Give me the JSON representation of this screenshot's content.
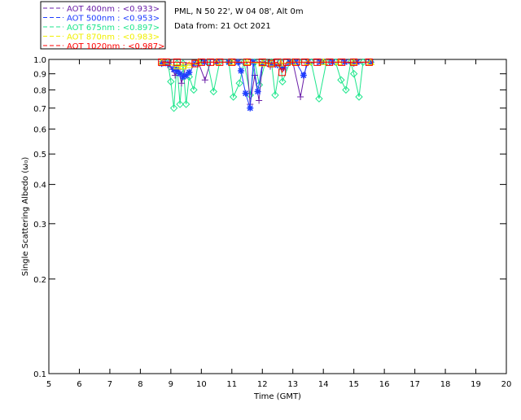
{
  "chart_data": {
    "type": "line",
    "header": {
      "station": "PML, N 50 22', W 04 08', Alt 0m",
      "date": "Data from: 21 Oct 2021"
    },
    "xlabel": "Time (GMT)",
    "ylabel": "Single Scattering Albedo (ω₀)",
    "xlim": [
      5,
      20
    ],
    "ylim": [
      0.1,
      1.0
    ],
    "yscale": "log",
    "xticks": [
      "5",
      "6",
      "7",
      "8",
      "9",
      "10",
      "11",
      "12",
      "13",
      "14",
      "15",
      "16",
      "17",
      "18",
      "19",
      "20"
    ],
    "yticks": [
      "0.1",
      "0.2",
      "0.3",
      "0.4",
      "0.5",
      "0.6",
      "0.7",
      "0.8",
      "0.9",
      "1.0"
    ],
    "legend_placement": "top-left",
    "series": [
      {
        "name": "AOT  400nm : <0.933>",
        "color": "#6a1ea8",
        "marker": "plus",
        "points": [
          [
            8.7,
            0.97
          ],
          [
            8.9,
            0.96
          ],
          [
            9.05,
            0.93
          ],
          [
            9.14,
            0.89
          ],
          [
            9.25,
            0.93
          ],
          [
            9.35,
            0.84
          ],
          [
            9.5,
            0.96
          ],
          [
            9.7,
            0.96
          ],
          [
            9.9,
            0.98
          ],
          [
            10.12,
            0.86
          ],
          [
            10.3,
            0.98
          ],
          [
            10.6,
            0.98
          ],
          [
            10.9,
            0.98
          ],
          [
            11.2,
            0.98
          ],
          [
            11.5,
            0.96
          ],
          [
            11.6,
            0.72
          ],
          [
            11.75,
            0.89
          ],
          [
            11.89,
            0.74
          ],
          [
            12.0,
            0.96
          ],
          [
            12.26,
            0.95
          ],
          [
            12.5,
            0.97
          ],
          [
            12.7,
            0.97
          ],
          [
            13.0,
            0.98
          ],
          [
            13.25,
            0.76
          ],
          [
            13.45,
            0.97
          ],
          [
            13.8,
            0.98
          ],
          [
            14.2,
            0.98
          ],
          [
            14.6,
            0.98
          ],
          [
            15.0,
            0.97
          ],
          [
            15.4,
            0.98
          ],
          [
            15.55,
            0.98
          ]
        ]
      },
      {
        "name": "AOT  500nm : <0.953>",
        "color": "#1e3cff",
        "marker": "asterisk",
        "points": [
          [
            8.7,
            0.97
          ],
          [
            8.9,
            0.97
          ],
          [
            9.1,
            0.93
          ],
          [
            9.2,
            0.92
          ],
          [
            9.3,
            0.9
          ],
          [
            9.4,
            0.88
          ],
          [
            9.5,
            0.89
          ],
          [
            9.6,
            0.91
          ],
          [
            9.8,
            0.97
          ],
          [
            10.1,
            0.98
          ],
          [
            10.5,
            0.98
          ],
          [
            10.9,
            0.98
          ],
          [
            11.2,
            0.98
          ],
          [
            11.3,
            0.92
          ],
          [
            11.45,
            0.78
          ],
          [
            11.6,
            0.7
          ],
          [
            11.7,
            0.98
          ],
          [
            11.85,
            0.79
          ],
          [
            12.0,
            0.97
          ],
          [
            12.3,
            0.97
          ],
          [
            12.5,
            0.96
          ],
          [
            12.7,
            0.94
          ],
          [
            12.9,
            0.98
          ],
          [
            13.1,
            0.98
          ],
          [
            13.35,
            0.89
          ],
          [
            13.5,
            0.98
          ],
          [
            13.9,
            0.98
          ],
          [
            14.3,
            0.98
          ],
          [
            14.7,
            0.98
          ],
          [
            15.1,
            0.98
          ],
          [
            15.55,
            0.98
          ]
        ]
      },
      {
        "name": "AOT  675nm : <0.897>",
        "color": "#1ee68c",
        "marker": "diamond",
        "points": [
          [
            8.75,
            0.98
          ],
          [
            8.9,
            0.98
          ],
          [
            9.0,
            0.85
          ],
          [
            9.1,
            0.7
          ],
          [
            9.2,
            0.97
          ],
          [
            9.3,
            0.72
          ],
          [
            9.4,
            0.97
          ],
          [
            9.5,
            0.72
          ],
          [
            9.6,
            0.88
          ],
          [
            9.75,
            0.8
          ],
          [
            9.9,
            0.98
          ],
          [
            10.2,
            0.98
          ],
          [
            10.4,
            0.79
          ],
          [
            10.6,
            0.98
          ],
          [
            10.9,
            0.98
          ],
          [
            11.05,
            0.76
          ],
          [
            11.25,
            0.84
          ],
          [
            11.4,
            0.98
          ],
          [
            11.6,
            0.77
          ],
          [
            11.75,
            0.98
          ],
          [
            11.9,
            0.83
          ],
          [
            12.1,
            0.98
          ],
          [
            12.3,
            0.98
          ],
          [
            12.42,
            0.77
          ],
          [
            12.6,
            0.98
          ],
          [
            12.66,
            0.85
          ],
          [
            12.9,
            0.98
          ],
          [
            13.2,
            0.98
          ],
          [
            13.6,
            0.98
          ],
          [
            13.86,
            0.75
          ],
          [
            14.1,
            0.98
          ],
          [
            14.4,
            0.98
          ],
          [
            14.58,
            0.86
          ],
          [
            14.74,
            0.8
          ],
          [
            14.9,
            0.98
          ],
          [
            15.0,
            0.9
          ],
          [
            15.17,
            0.76
          ],
          [
            15.3,
            0.98
          ],
          [
            15.55,
            0.98
          ]
        ]
      },
      {
        "name": "AOT  870nm : <0.983>",
        "color": "#f0f000",
        "marker": "triangle",
        "points": [
          [
            8.7,
            0.98
          ],
          [
            9.2,
            0.95
          ],
          [
            9.4,
            0.95
          ],
          [
            9.6,
            0.96
          ],
          [
            9.9,
            0.98
          ],
          [
            10.5,
            0.98
          ],
          [
            11.0,
            0.98
          ],
          [
            11.5,
            0.98
          ],
          [
            12.0,
            0.97
          ],
          [
            12.3,
            0.97
          ],
          [
            12.6,
            0.97
          ],
          [
            13.0,
            0.98
          ],
          [
            13.5,
            0.98
          ],
          [
            14.0,
            0.98
          ],
          [
            14.5,
            0.98
          ],
          [
            15.0,
            0.98
          ],
          [
            15.55,
            0.98
          ]
        ]
      },
      {
        "name": "AOT 1020nm : <0.987>",
        "color": "#ff0000",
        "marker": "square",
        "points": [
          [
            8.7,
            0.98
          ],
          [
            8.85,
            0.98
          ],
          [
            9.2,
            0.98
          ],
          [
            9.8,
            0.97
          ],
          [
            10.0,
            0.98
          ],
          [
            10.3,
            0.98
          ],
          [
            10.6,
            0.98
          ],
          [
            11.0,
            0.98
          ],
          [
            11.5,
            0.98
          ],
          [
            12.0,
            0.98
          ],
          [
            12.3,
            0.97
          ],
          [
            12.5,
            0.98
          ],
          [
            12.65,
            0.91
          ],
          [
            12.8,
            0.98
          ],
          [
            13.1,
            0.98
          ],
          [
            13.4,
            0.98
          ],
          [
            13.8,
            0.98
          ],
          [
            14.2,
            0.98
          ],
          [
            14.6,
            0.98
          ],
          [
            15.0,
            0.98
          ],
          [
            15.5,
            0.98
          ]
        ]
      }
    ]
  }
}
